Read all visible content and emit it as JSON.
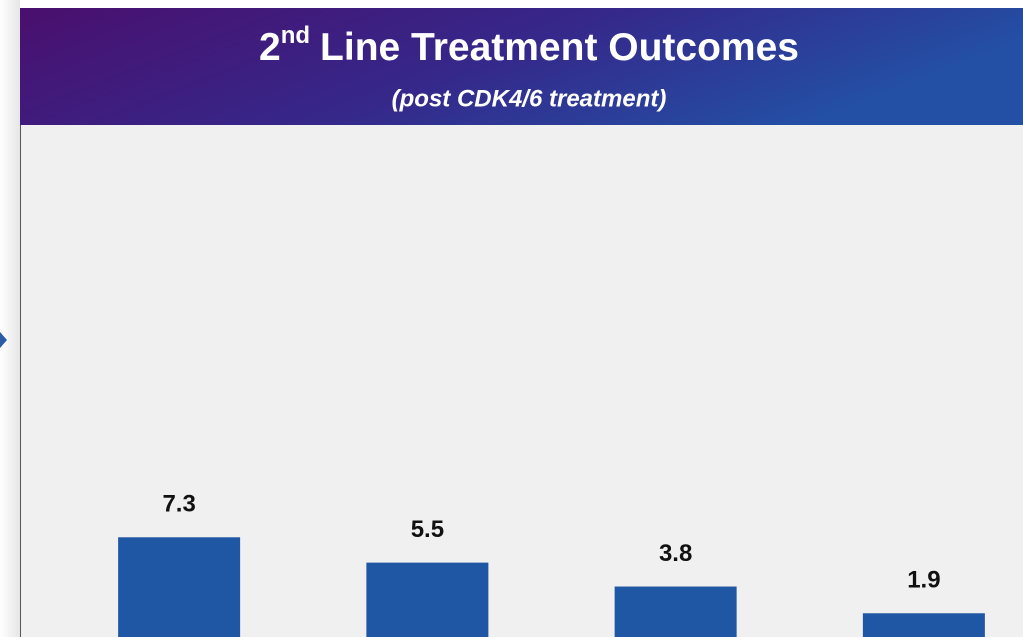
{
  "chart_data": {
    "type": "bar",
    "title": {
      "number": "2",
      "suffix": "nd",
      "text": "Line Treatment Outcomes"
    },
    "subtitle": "(post CDK4/6 treatment)",
    "values": [
      7.3,
      5.5,
      3.8,
      1.9
    ],
    "color": "#1f57a5"
  }
}
